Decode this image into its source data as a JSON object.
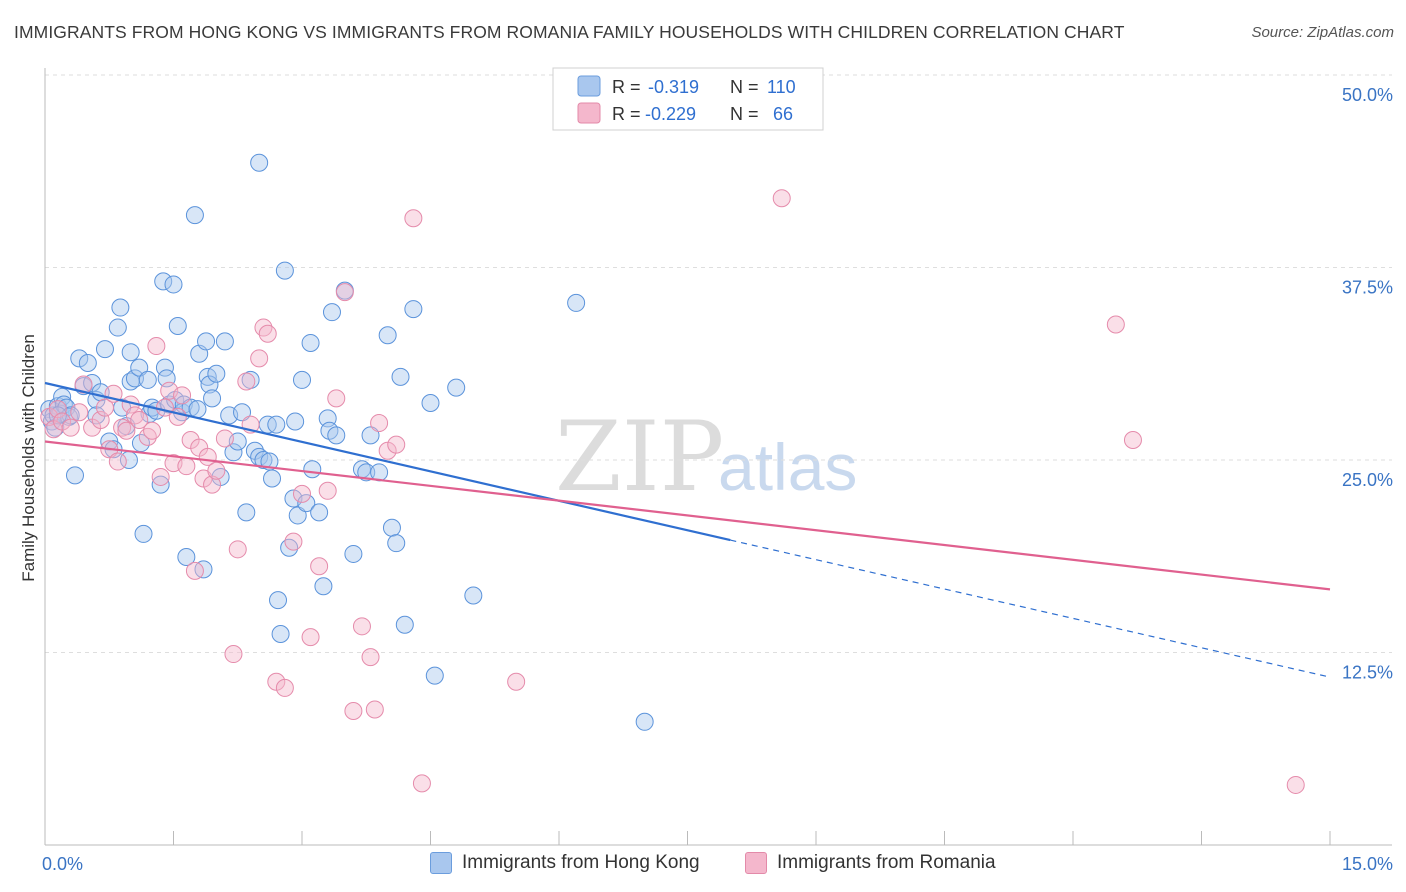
{
  "title": "IMMIGRANTS FROM HONG KONG VS IMMIGRANTS FROM ROMANIA FAMILY HOUSEHOLDS WITH CHILDREN CORRELATION CHART",
  "source": "Source: ZipAtlas.com",
  "watermark": {
    "zip": "ZIP",
    "atlas": "atlas"
  },
  "colors": {
    "blue": "#3a7bd5",
    "blue_fill": "#a9c7ee",
    "pink": "#e86d9a",
    "pink_fill": "#f4b7cc",
    "axis_text": "#3a74c4"
  },
  "legend_box": {
    "rows": [
      {
        "r_label": "R =",
        "r_value": "-0.319",
        "n_label": "N =",
        "n_value": "110"
      },
      {
        "r_label": "R =",
        "r_value": "-0.229",
        "n_label": "N =",
        "n_value": "66"
      }
    ]
  },
  "bottom_legend": [
    "Immigrants from Hong Kong",
    "Immigrants from Romania"
  ],
  "chart_data": {
    "type": "scatter",
    "title": "IMMIGRANTS FROM HONG KONG VS IMMIGRANTS FROM ROMANIA FAMILY HOUSEHOLDS WITH CHILDREN CORRELATION CHART",
    "xlabel": "",
    "ylabel": "Family Households with Children",
    "xlim": [
      0,
      15
    ],
    "ylim": [
      0,
      50
    ],
    "x_tick_labels": [
      "0.0%",
      "15.0%"
    ],
    "y_ticks": [
      12.5,
      25.0,
      37.5,
      50.0
    ],
    "y_tick_labels": [
      "12.5%",
      "25.0%",
      "37.5%",
      "50.0%"
    ],
    "grid": "horizontal dashed",
    "series": [
      {
        "name": "Immigrants from Hong Kong",
        "color": "#3a7bd5",
        "trend": {
          "x0": 0,
          "y0": 30.0,
          "x1": 8.0,
          "y1": 19.8,
          "dashed_to_x": 15,
          "dashed_to_y": 10.9
        },
        "points": [
          [
            0.05,
            28.3
          ],
          [
            0.08,
            27.5
          ],
          [
            0.1,
            27.9
          ],
          [
            0.12,
            27.1
          ],
          [
            0.15,
            28.5
          ],
          [
            0.18,
            28.0
          ],
          [
            0.2,
            29.1
          ],
          [
            0.22,
            28.6
          ],
          [
            0.25,
            28.4
          ],
          [
            0.28,
            27.8
          ],
          [
            0.3,
            27.9
          ],
          [
            0.35,
            24.0
          ],
          [
            0.4,
            31.6
          ],
          [
            0.45,
            29.8
          ],
          [
            0.5,
            31.3
          ],
          [
            0.55,
            30.0
          ],
          [
            0.6,
            28.9
          ],
          [
            0.65,
            29.4
          ],
          [
            0.7,
            32.2
          ],
          [
            0.75,
            26.2
          ],
          [
            0.8,
            25.7
          ],
          [
            0.85,
            33.6
          ],
          [
            0.88,
            34.9
          ],
          [
            0.9,
            28.4
          ],
          [
            0.95,
            27.2
          ],
          [
            0.98,
            25.0
          ],
          [
            1.0,
            30.1
          ],
          [
            1.05,
            30.3
          ],
          [
            1.1,
            31.0
          ],
          [
            1.12,
            26.1
          ],
          [
            1.15,
            20.2
          ],
          [
            1.2,
            30.2
          ],
          [
            1.22,
            28.0
          ],
          [
            1.25,
            28.4
          ],
          [
            1.3,
            28.2
          ],
          [
            1.35,
            23.4
          ],
          [
            1.38,
            36.6
          ],
          [
            1.4,
            31.0
          ],
          [
            1.42,
            30.3
          ],
          [
            1.45,
            28.6
          ],
          [
            1.5,
            36.4
          ],
          [
            1.52,
            28.9
          ],
          [
            1.55,
            33.7
          ],
          [
            1.6,
            28.1
          ],
          [
            1.62,
            28.6
          ],
          [
            1.65,
            18.7
          ],
          [
            1.7,
            28.4
          ],
          [
            1.75,
            40.9
          ],
          [
            1.78,
            28.3
          ],
          [
            1.8,
            31.9
          ],
          [
            1.85,
            17.9
          ],
          [
            1.88,
            32.7
          ],
          [
            1.9,
            30.4
          ],
          [
            1.92,
            29.9
          ],
          [
            1.95,
            29.0
          ],
          [
            2.0,
            30.6
          ],
          [
            2.05,
            23.9
          ],
          [
            2.1,
            32.7
          ],
          [
            2.15,
            27.9
          ],
          [
            2.2,
            25.5
          ],
          [
            2.25,
            26.2
          ],
          [
            2.3,
            28.1
          ],
          [
            2.35,
            21.6
          ],
          [
            2.4,
            30.2
          ],
          [
            2.45,
            25.6
          ],
          [
            2.5,
            25.2
          ],
          [
            2.55,
            25.0
          ],
          [
            2.6,
            27.3
          ],
          [
            2.62,
            24.9
          ],
          [
            2.65,
            23.8
          ],
          [
            2.7,
            27.3
          ],
          [
            2.72,
            15.9
          ],
          [
            2.75,
            13.7
          ],
          [
            2.8,
            37.3
          ],
          [
            2.85,
            19.3
          ],
          [
            2.9,
            22.5
          ],
          [
            2.92,
            27.5
          ],
          [
            2.95,
            21.4
          ],
          [
            3.0,
            30.2
          ],
          [
            3.05,
            22.2
          ],
          [
            3.1,
            32.6
          ],
          [
            3.12,
            24.4
          ],
          [
            3.2,
            21.6
          ],
          [
            3.25,
            16.8
          ],
          [
            3.3,
            27.7
          ],
          [
            3.32,
            26.9
          ],
          [
            3.35,
            34.6
          ],
          [
            3.4,
            26.6
          ],
          [
            3.5,
            36.0
          ],
          [
            3.6,
            18.9
          ],
          [
            3.7,
            24.4
          ],
          [
            3.75,
            24.2
          ],
          [
            3.8,
            26.6
          ],
          [
            3.9,
            24.2
          ],
          [
            4.0,
            33.1
          ],
          [
            4.05,
            20.6
          ],
          [
            4.1,
            19.6
          ],
          [
            4.15,
            30.4
          ],
          [
            4.2,
            14.3
          ],
          [
            4.3,
            34.8
          ],
          [
            4.5,
            28.7
          ],
          [
            4.55,
            11.0
          ],
          [
            4.8,
            29.7
          ],
          [
            5.0,
            16.2
          ],
          [
            6.2,
            35.2
          ],
          [
            7.0,
            8.0
          ],
          [
            2.5,
            44.3
          ],
          [
            0.6,
            27.9
          ],
          [
            1.0,
            32.0
          ],
          [
            0.15,
            27.9
          ]
        ]
      },
      {
        "name": "Immigrants from Romania",
        "color": "#e86d9a",
        "trend": {
          "x0": 0,
          "y0": 26.2,
          "x1": 15,
          "y1": 16.6
        },
        "points": [
          [
            0.05,
            27.8
          ],
          [
            0.1,
            27.0
          ],
          [
            0.15,
            28.3
          ],
          [
            0.2,
            27.5
          ],
          [
            0.3,
            27.1
          ],
          [
            0.4,
            28.1
          ],
          [
            0.45,
            29.9
          ],
          [
            0.55,
            27.1
          ],
          [
            0.65,
            27.6
          ],
          [
            0.7,
            28.4
          ],
          [
            0.75,
            25.7
          ],
          [
            0.8,
            29.3
          ],
          [
            0.85,
            24.9
          ],
          [
            0.9,
            27.1
          ],
          [
            0.95,
            26.9
          ],
          [
            1.0,
            28.6
          ],
          [
            1.05,
            27.9
          ],
          [
            1.1,
            27.6
          ],
          [
            1.2,
            26.5
          ],
          [
            1.25,
            26.9
          ],
          [
            1.3,
            32.4
          ],
          [
            1.35,
            23.9
          ],
          [
            1.4,
            28.4
          ],
          [
            1.45,
            29.5
          ],
          [
            1.5,
            24.8
          ],
          [
            1.55,
            27.8
          ],
          [
            1.6,
            29.2
          ],
          [
            1.65,
            24.6
          ],
          [
            1.7,
            26.3
          ],
          [
            1.75,
            17.8
          ],
          [
            1.8,
            25.8
          ],
          [
            1.85,
            23.8
          ],
          [
            1.9,
            25.2
          ],
          [
            1.95,
            23.4
          ],
          [
            2.0,
            24.3
          ],
          [
            2.1,
            26.4
          ],
          [
            2.2,
            12.4
          ],
          [
            2.25,
            19.2
          ],
          [
            2.35,
            30.1
          ],
          [
            2.4,
            27.3
          ],
          [
            2.5,
            31.6
          ],
          [
            2.55,
            33.6
          ],
          [
            2.6,
            33.2
          ],
          [
            2.7,
            10.6
          ],
          [
            2.8,
            10.2
          ],
          [
            2.9,
            19.7
          ],
          [
            3.0,
            22.8
          ],
          [
            3.1,
            13.5
          ],
          [
            3.2,
            18.1
          ],
          [
            3.3,
            23.0
          ],
          [
            3.4,
            29.0
          ],
          [
            3.5,
            35.9
          ],
          [
            3.6,
            8.7
          ],
          [
            3.7,
            14.2
          ],
          [
            3.8,
            12.2
          ],
          [
            3.85,
            8.8
          ],
          [
            3.9,
            27.4
          ],
          [
            4.0,
            25.6
          ],
          [
            4.1,
            26.0
          ],
          [
            4.3,
            40.7
          ],
          [
            4.4,
            4.0
          ],
          [
            5.5,
            10.6
          ],
          [
            8.6,
            42.0
          ],
          [
            12.5,
            33.8
          ],
          [
            12.7,
            26.3
          ],
          [
            14.6,
            3.9
          ]
        ]
      }
    ]
  }
}
